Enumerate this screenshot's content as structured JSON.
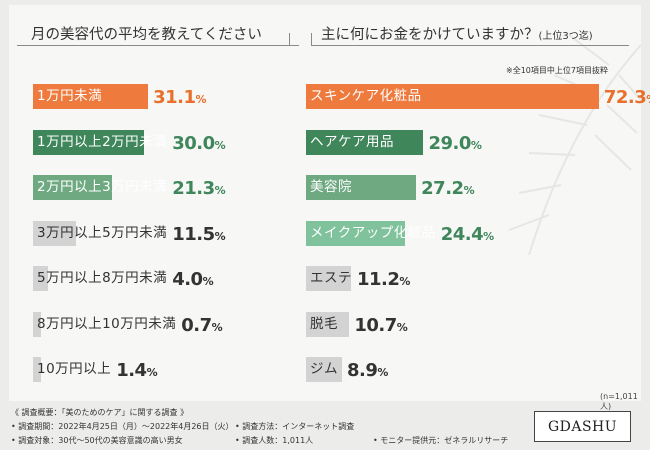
{
  "left_panel": {
    "title": "月の美容代の平均を教えてください"
  },
  "right_panel": {
    "title": "主に何にお金をかけていますか？",
    "title_suffix": "(上位3つ迄)",
    "note": "※全10項目中上位7項目抜粋"
  },
  "chart_data": [
    {
      "type": "bar",
      "title": "月の美容代の平均を教えてください",
      "categories": [
        "1万円未満",
        "1万円以上2万円未満",
        "2万円以上3万円未満",
        "3万円以上5万円未満",
        "5万円以上8万円未満",
        "8万円以上10万円未満",
        "10万円以上"
      ],
      "values": [
        31.1,
        30.0,
        21.3,
        11.5,
        4.0,
        0.7,
        1.4
      ],
      "labels": [
        "31.1",
        "30.0",
        "21.3",
        "11.5",
        "4.0",
        "0.7",
        "1.4"
      ],
      "unit": "%",
      "orientation": "horizontal"
    },
    {
      "type": "bar",
      "title": "主に何にお金をかけていますか？(上位3つ迄)",
      "categories": [
        "スキンケア化粧品",
        "ヘアケア用品",
        "美容院",
        "メイクアップ化粧品",
        "エステ",
        "脱毛",
        "ジム"
      ],
      "values": [
        72.3,
        29.0,
        27.2,
        24.4,
        11.2,
        10.7,
        8.9
      ],
      "labels": [
        "72.3",
        "29.0",
        "27.2",
        "24.4",
        "11.2",
        "10.7",
        "8.9"
      ],
      "unit": "%",
      "orientation": "horizontal"
    }
  ],
  "sample_note": "(n=1,011人)",
  "footer": {
    "overview": "《 調査概要：「美のためのケア」に関する調査 》",
    "period": "• 調査期間：2022年4月25日（月）～2022年4月26日（火）",
    "method": "• 調査方法：インターネット調査",
    "target": "• 調査対象：30代～50代の美容意識の高い男女",
    "count": "• 調査人数：1,011人",
    "provider": "• モニター提供元：ゼネラルリサーチ"
  },
  "logo": "GDASHU",
  "colors": {
    "rank1": "#ee7a3d",
    "rank2": "#3f865b",
    "rank3": "#6fa982",
    "rank4": "#7fc29b",
    "other": "#d3d3d3",
    "orange_text": "#e8702c",
    "green_text": "#3f865b",
    "gray_text": "#333333"
  }
}
